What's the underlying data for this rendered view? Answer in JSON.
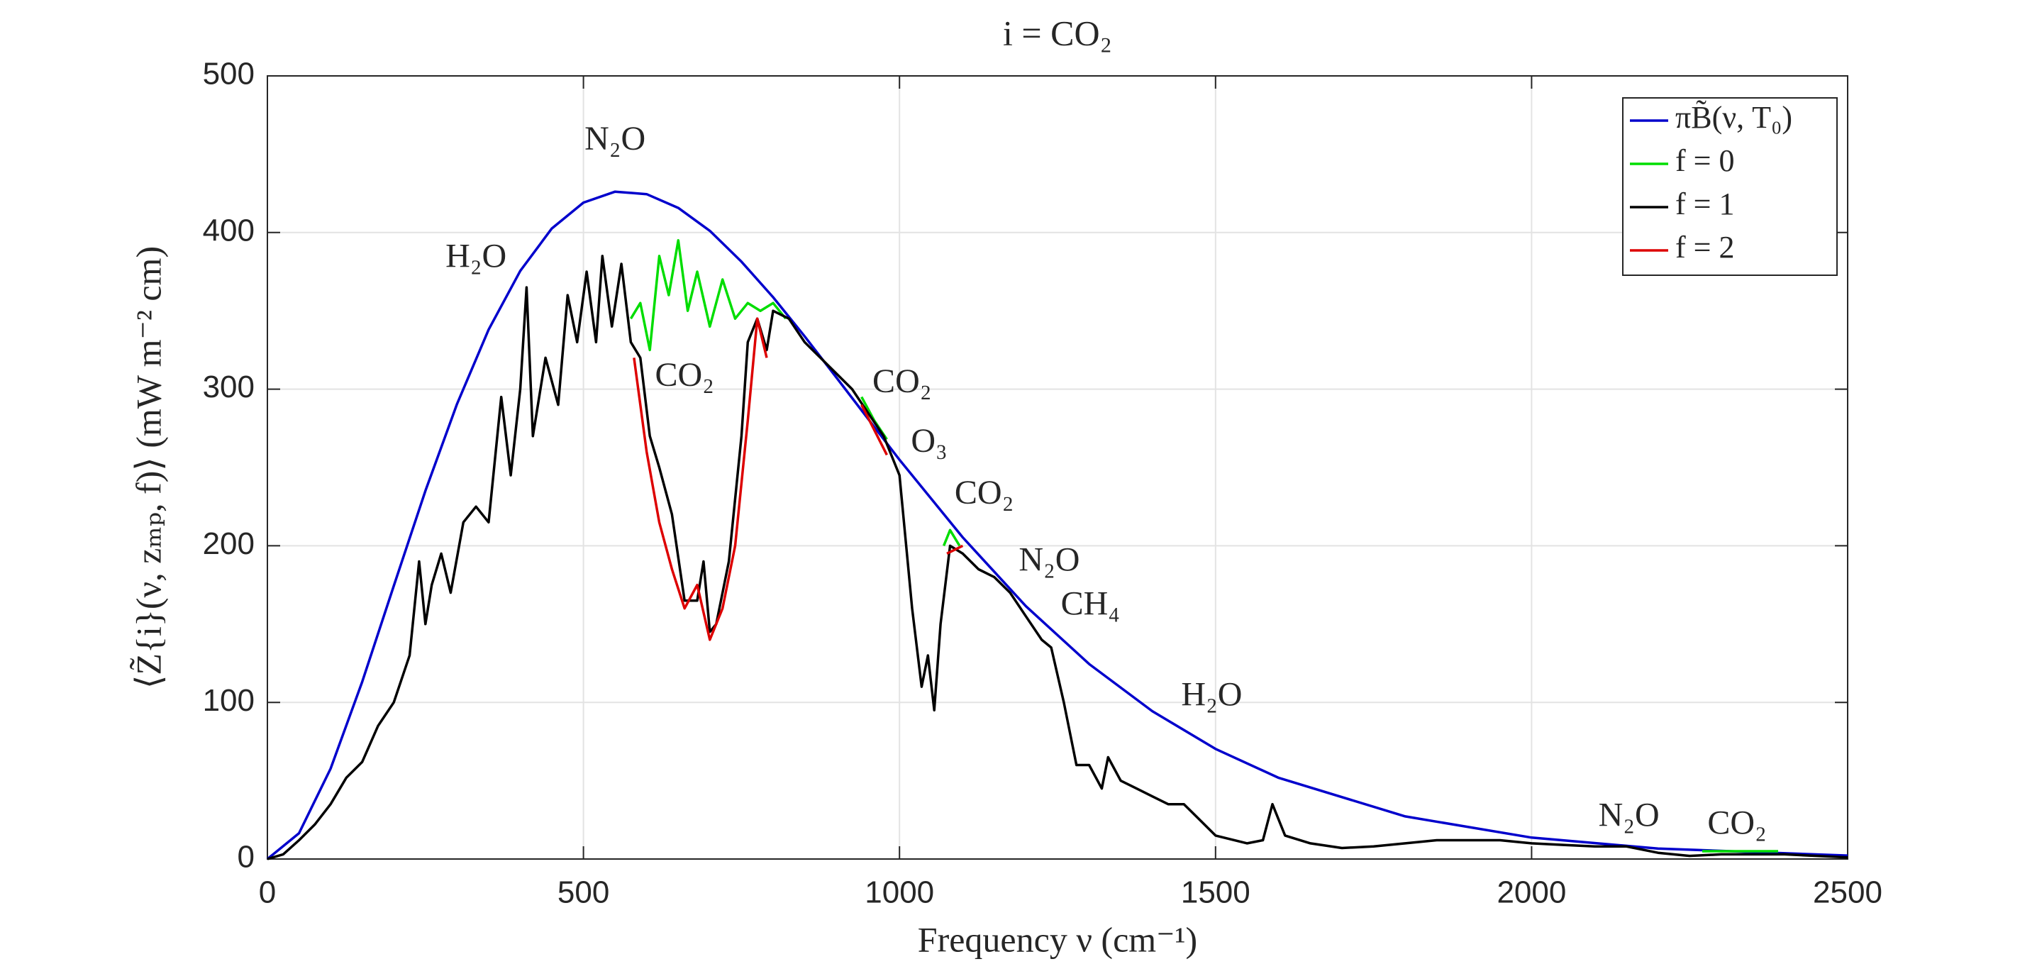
{
  "chart_data": {
    "type": "line",
    "title": "i =  CO₂",
    "x_label": "Frequency ν (cm⁻¹)",
    "y_label": "⟨Z̃{i}(ν, zₘₚ, f)⟩ (mW m⁻² cm)",
    "xlim": [
      0,
      2500
    ],
    "ylim": [
      0,
      500
    ],
    "xticks": [
      0,
      500,
      1000,
      1500,
      2000,
      2500
    ],
    "yticks": [
      0,
      100,
      200,
      300,
      400,
      500
    ],
    "grid": true,
    "legend": "upper right",
    "series": [
      {
        "name": "πB̃(ν, T₀)",
        "color": "#0000cc",
        "x": [
          0,
          50,
          100,
          150,
          200,
          250,
          300,
          350,
          400,
          450,
          500,
          550,
          600,
          650,
          700,
          750,
          800,
          850,
          900,
          950,
          1000,
          1100,
          1200,
          1300,
          1400,
          1500,
          1600,
          1800,
          2000,
          2200,
          2500
        ],
        "values": [
          0,
          16.5,
          57.7,
          113.2,
          174.4,
          235.1,
          290.6,
          338,
          375.5,
          402.6,
          419.1,
          426.1,
          424.5,
          415.7,
          401.1,
          381.4,
          358.7,
          333.7,
          307.5,
          281.2,
          254.9,
          205.4,
          161.4,
          124.5,
          94.4,
          70.3,
          51.8,
          27.2,
          13.7,
          6.7,
          2.2
        ]
      },
      {
        "name": "f = 0",
        "color": "#00dd00",
        "x": [
          575,
          590,
          605,
          620,
          635,
          650,
          665,
          680,
          700,
          720,
          740,
          760,
          780,
          800,
          820,
          830,
          940,
          960,
          980,
          990,
          1070,
          1080,
          1095,
          1100,
          2270,
          2390
        ],
        "values": [
          345,
          355,
          325,
          385,
          360,
          395,
          350,
          375,
          340,
          370,
          345,
          355,
          350,
          355,
          345,
          null,
          295,
          280,
          268,
          null,
          200,
          210,
          200,
          null,
          5,
          5
        ]
      },
      {
        "name": "f = 1",
        "color": "#000000",
        "x": [
          0,
          25,
          50,
          75,
          100,
          125,
          150,
          175,
          200,
          225,
          240,
          250,
          260,
          275,
          290,
          310,
          330,
          350,
          370,
          385,
          400,
          410,
          420,
          440,
          460,
          475,
          490,
          505,
          520,
          530,
          545,
          560,
          575,
          590,
          605,
          620,
          640,
          660,
          680,
          690,
          700,
          710,
          730,
          750,
          760,
          775,
          790,
          800,
          825,
          850,
          875,
          900,
          925,
          950,
          975,
          1000,
          1020,
          1035,
          1045,
          1055,
          1065,
          1080,
          1100,
          1125,
          1150,
          1175,
          1200,
          1225,
          1240,
          1260,
          1280,
          1300,
          1320,
          1330,
          1350,
          1375,
          1400,
          1425,
          1450,
          1475,
          1500,
          1550,
          1575,
          1590,
          1610,
          1650,
          1700,
          1750,
          1800,
          1850,
          1900,
          1950,
          2000,
          2050,
          2100,
          2150,
          2200,
          2250,
          2300,
          2400,
          2500
        ],
        "values": [
          0,
          3,
          12,
          22,
          35,
          52,
          62,
          85,
          100,
          130,
          190,
          150,
          175,
          195,
          170,
          215,
          225,
          215,
          295,
          245,
          300,
          365,
          270,
          320,
          290,
          360,
          330,
          375,
          330,
          385,
          340,
          380,
          330,
          320,
          270,
          250,
          220,
          165,
          165,
          190,
          145,
          150,
          190,
          270,
          330,
          345,
          325,
          350,
          345,
          330,
          320,
          310,
          300,
          285,
          270,
          245,
          160,
          110,
          130,
          95,
          150,
          200,
          195,
          185,
          180,
          170,
          155,
          140,
          135,
          100,
          60,
          60,
          45,
          65,
          50,
          45,
          40,
          35,
          35,
          25,
          15,
          10,
          12,
          35,
          15,
          10,
          7,
          8,
          10,
          12,
          12,
          12,
          10,
          9,
          8,
          8,
          4,
          2,
          3,
          3,
          1
        ]
      },
      {
        "name": "f = 2",
        "color": "#dd0000",
        "x": [
          580,
          600,
          620,
          640,
          660,
          680,
          700,
          720,
          740,
          760,
          775,
          790,
          800,
          940,
          980,
          990,
          1075,
          1100
        ],
        "values": [
          320,
          260,
          215,
          185,
          160,
          175,
          140,
          160,
          200,
          280,
          345,
          320,
          null,
          290,
          258,
          null,
          195,
          200
        ]
      }
    ],
    "annotations": [
      {
        "text": "H₂O",
        "x": 330,
        "y": 383
      },
      {
        "text": "N₂O",
        "x": 550,
        "y": 458
      },
      {
        "text": "CO₂",
        "x": 660,
        "y": 307
      },
      {
        "text": "CO₂",
        "x": 1004,
        "y": 303
      },
      {
        "text": "O₃",
        "x": 1047,
        "y": 265
      },
      {
        "text": "CO₂",
        "x": 1134,
        "y": 232
      },
      {
        "text": "N₂O",
        "x": 1237,
        "y": 189
      },
      {
        "text": "CH₄",
        "x": 1302,
        "y": 161
      },
      {
        "text": "H₂O",
        "x": 1494,
        "y": 103
      },
      {
        "text": "N₂O",
        "x": 2154,
        "y": 26
      },
      {
        "text": "CO₂",
        "x": 2325,
        "y": 21
      }
    ]
  }
}
